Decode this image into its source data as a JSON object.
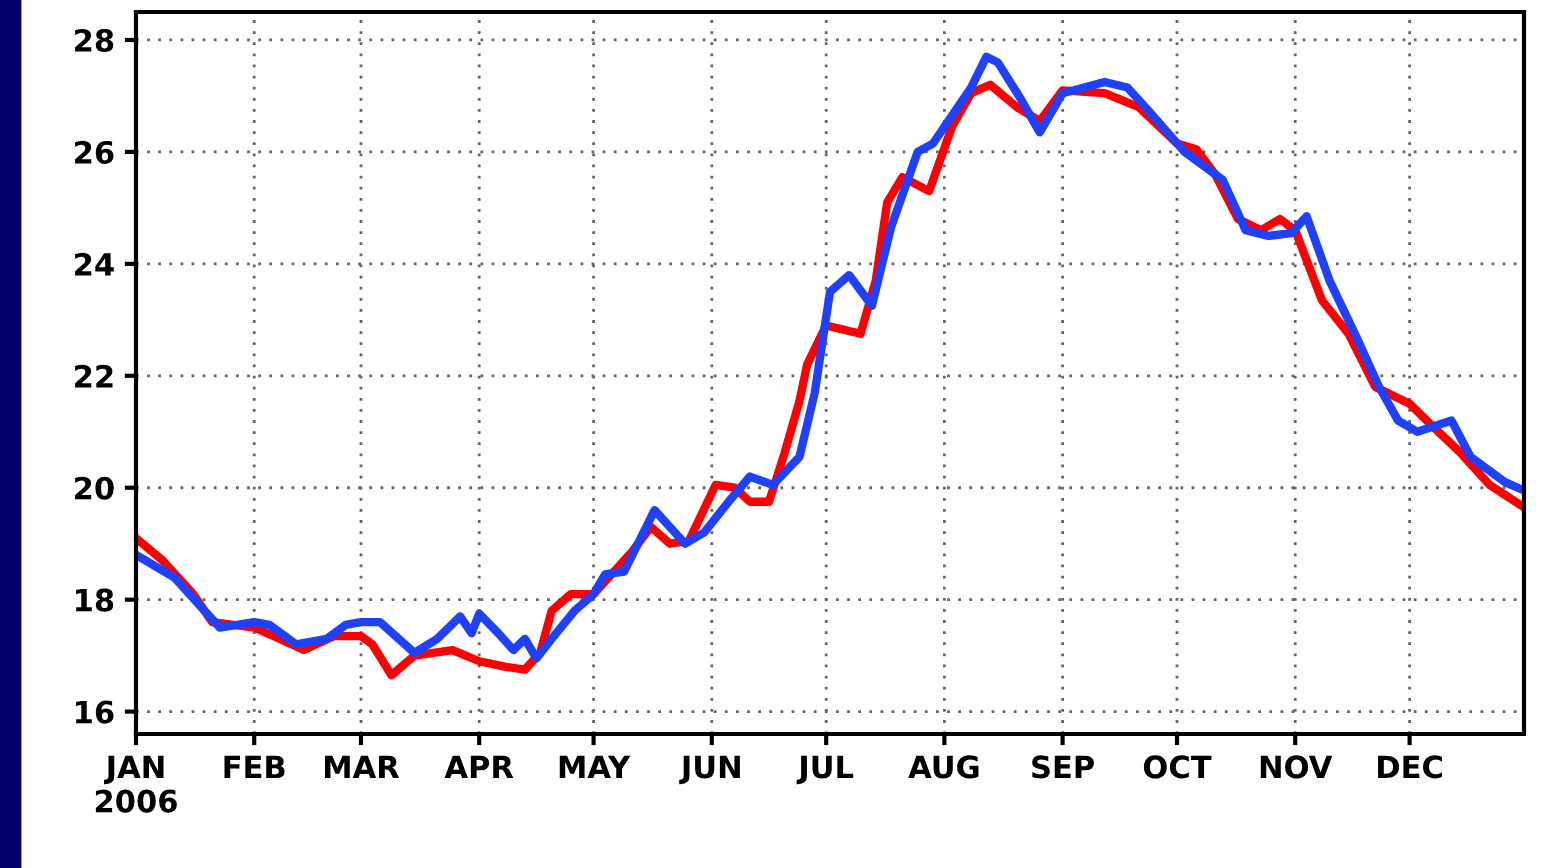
{
  "chart_data": {
    "type": "line",
    "xlim": [
      "2006-01-01",
      "2006-12-31"
    ],
    "xticks": [
      {
        "value": "2006-01-01",
        "label": "JAN\n2006"
      },
      {
        "value": "2006-02-01",
        "label": "FEB"
      },
      {
        "value": "2006-03-01",
        "label": "MAR"
      },
      {
        "value": "2006-04-01",
        "label": "APR"
      },
      {
        "value": "2006-05-01",
        "label": "MAY"
      },
      {
        "value": "2006-06-01",
        "label": "JUN"
      },
      {
        "value": "2006-07-01",
        "label": "JUL"
      },
      {
        "value": "2006-08-01",
        "label": "AUG"
      },
      {
        "value": "2006-09-01",
        "label": "SEP"
      },
      {
        "value": "2006-10-01",
        "label": "OCT"
      },
      {
        "value": "2006-11-01",
        "label": "NOV"
      },
      {
        "value": "2006-12-01",
        "label": "DEC"
      }
    ],
    "ylim": [
      15.6,
      28.5
    ],
    "yticks": [
      16,
      18,
      20,
      22,
      24,
      26,
      28
    ],
    "grid": true,
    "line_style": "solid",
    "series": [
      {
        "color": "#ff0000",
        "x": [
          "2006-01-01",
          "2006-01-08",
          "2006-01-16",
          "2006-01-21",
          "2006-02-01",
          "2006-02-06",
          "2006-02-14",
          "2006-02-22",
          "2006-03-01",
          "2006-03-04",
          "2006-03-09",
          "2006-03-15",
          "2006-03-25",
          "2006-04-01",
          "2006-04-08",
          "2006-04-13",
          "2006-04-17",
          "2006-04-20",
          "2006-04-25",
          "2006-05-01",
          "2006-05-05",
          "2006-05-11",
          "2006-05-16",
          "2006-05-21",
          "2006-05-26",
          "2006-06-02",
          "2006-06-07",
          "2006-06-11",
          "2006-06-16",
          "2006-06-20",
          "2006-06-24",
          "2006-06-26",
          "2006-07-01",
          "2006-07-10",
          "2006-07-14",
          "2006-07-17",
          "2006-07-21",
          "2006-07-28",
          "2006-08-03",
          "2006-08-08",
          "2006-08-13",
          "2006-08-20",
          "2006-08-26",
          "2006-09-01",
          "2006-09-12",
          "2006-09-21",
          "2006-10-01",
          "2006-10-06",
          "2006-10-11",
          "2006-10-17",
          "2006-10-23",
          "2006-10-28",
          "2006-11-01",
          "2006-11-08",
          "2006-11-15",
          "2006-11-22",
          "2006-12-01",
          "2006-12-07",
          "2006-12-14",
          "2006-12-22",
          "2006-12-31"
        ],
        "values": [
          19.1,
          18.7,
          18.1,
          17.6,
          17.5,
          17.35,
          17.1,
          17.35,
          17.35,
          17.2,
          16.65,
          17.0,
          17.1,
          16.9,
          16.8,
          16.75,
          17.05,
          17.8,
          18.1,
          18.1,
          18.4,
          18.85,
          19.3,
          19.0,
          19.05,
          20.05,
          20.0,
          19.75,
          19.75,
          20.6,
          21.55,
          22.2,
          22.9,
          22.75,
          23.7,
          25.1,
          25.55,
          25.3,
          26.45,
          27.05,
          27.2,
          26.8,
          26.55,
          27.1,
          27.05,
          26.8,
          26.15,
          26.05,
          25.6,
          24.8,
          24.6,
          24.8,
          24.6,
          23.35,
          22.75,
          21.8,
          21.5,
          21.1,
          20.65,
          20.05,
          19.65
        ]
      },
      {
        "color": "#2040ff",
        "x": [
          "2006-01-01",
          "2006-01-11",
          "2006-01-17",
          "2006-01-23",
          "2006-02-01",
          "2006-02-05",
          "2006-02-12",
          "2006-02-20",
          "2006-02-25",
          "2006-03-01",
          "2006-03-06",
          "2006-03-15",
          "2006-03-21",
          "2006-03-27",
          "2006-03-30",
          "2006-04-01",
          "2006-04-06",
          "2006-04-10",
          "2006-04-13",
          "2006-04-16",
          "2006-04-20",
          "2006-04-26",
          "2006-05-01",
          "2006-05-04",
          "2006-05-09",
          "2006-05-17",
          "2006-05-25",
          "2006-05-30",
          "2006-06-06",
          "2006-06-11",
          "2006-06-17",
          "2006-06-24",
          "2006-06-28",
          "2006-07-02",
          "2006-07-07",
          "2006-07-13",
          "2006-07-18",
          "2006-07-25",
          "2006-07-29",
          "2006-08-03",
          "2006-08-08",
          "2006-08-12",
          "2006-08-15",
          "2006-08-21",
          "2006-08-26",
          "2006-09-01",
          "2006-09-12",
          "2006-09-18",
          "2006-09-24",
          "2006-10-03",
          "2006-10-13",
          "2006-10-19",
          "2006-10-25",
          "2006-10-31",
          "2006-11-04",
          "2006-11-10",
          "2006-11-17",
          "2006-11-23",
          "2006-11-28",
          "2006-12-03",
          "2006-12-12",
          "2006-12-17",
          "2006-12-26",
          "2006-12-31"
        ],
        "values": [
          18.8,
          18.4,
          17.95,
          17.5,
          17.6,
          17.55,
          17.2,
          17.3,
          17.55,
          17.6,
          17.6,
          17.05,
          17.3,
          17.7,
          17.4,
          17.75,
          17.4,
          17.1,
          17.3,
          16.95,
          17.3,
          17.8,
          18.1,
          18.45,
          18.5,
          19.6,
          19.0,
          19.2,
          19.8,
          20.2,
          20.05,
          20.55,
          21.7,
          23.5,
          23.8,
          23.25,
          24.65,
          26.0,
          26.15,
          26.65,
          27.15,
          27.7,
          27.6,
          26.95,
          26.35,
          27.05,
          27.25,
          27.15,
          26.7,
          26.0,
          25.5,
          24.6,
          24.5,
          24.55,
          24.85,
          23.7,
          22.7,
          21.8,
          21.2,
          21.0,
          21.2,
          20.55,
          20.1,
          19.95
        ]
      }
    ]
  }
}
